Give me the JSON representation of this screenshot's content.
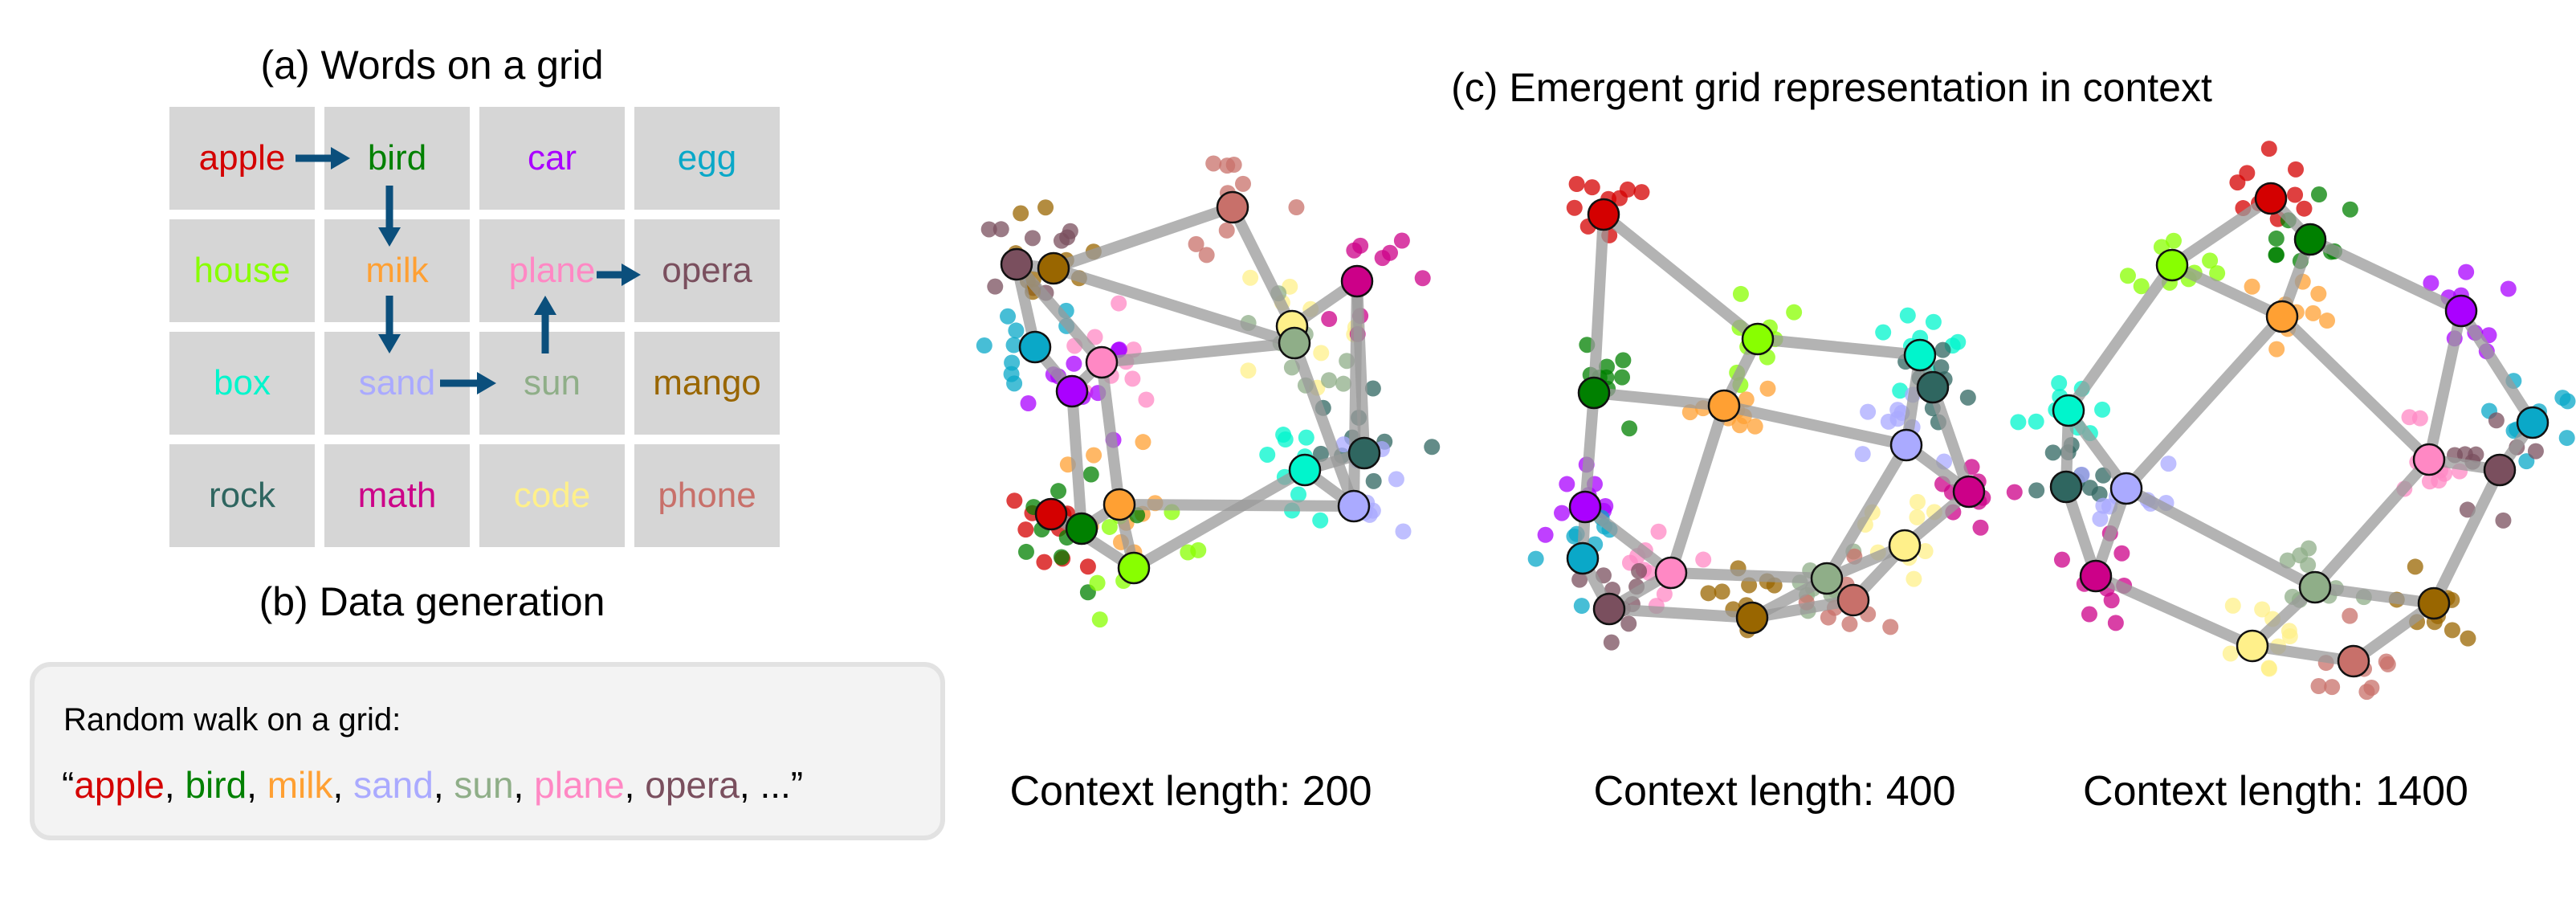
{
  "panel_a": {
    "title": "(a) Words on a grid",
    "grid": [
      [
        "apple",
        "bird",
        "car",
        "egg"
      ],
      [
        "house",
        "milk",
        "plane",
        "opera"
      ],
      [
        "box",
        "sand",
        "sun",
        "mango"
      ],
      [
        "rock",
        "math",
        "code",
        "phone"
      ]
    ],
    "walk_arrows": [
      [
        "apple",
        "bird"
      ],
      [
        "bird",
        "milk"
      ],
      [
        "milk",
        "sand"
      ],
      [
        "sand",
        "sun"
      ],
      [
        "sun",
        "plane"
      ],
      [
        "plane",
        "opera"
      ]
    ],
    "arrow_color": "#0b4f7c",
    "cell_color": "#d6d6d6"
  },
  "word_colors": {
    "apple": "#d40000",
    "bird": "#008000",
    "car": "#aa00ff",
    "egg": "#0aa8c8",
    "house": "#88ff00",
    "milk": "#ffa033",
    "plane": "#ff88c4",
    "opera": "#7a4f5e",
    "box": "#00f5cc",
    "sand": "#aaaaff",
    "sun": "#8fae88",
    "mango": "#996600",
    "rock": "#2f6660",
    "math": "#cc0088",
    "code": "#fff08a",
    "phone": "#c8706a"
  },
  "panel_b": {
    "title": "(b) Data generation",
    "heading": "Random walk on a grid:",
    "open_quote": "“",
    "sequence": [
      "apple",
      "bird",
      "milk",
      "sand",
      "sun",
      "plane",
      "opera"
    ],
    "ellipsis": "...",
    "close_quote": "”"
  },
  "panel_c": {
    "title": "(c) Emergent grid representation in context",
    "edge_color": "#9a9a9a",
    "plots": [
      {
        "label": "Context length: 200"
      },
      {
        "label": "Context length: 400"
      },
      {
        "label": "Context length: 1400"
      }
    ]
  }
}
